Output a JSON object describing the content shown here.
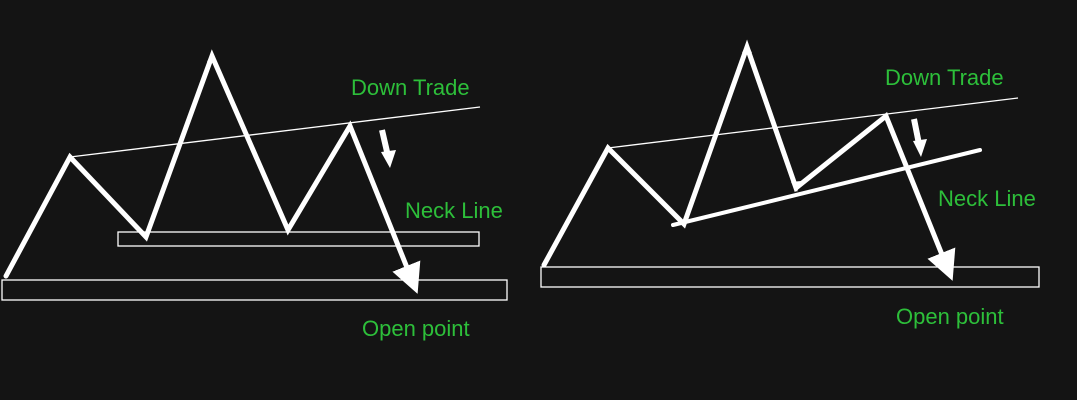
{
  "diagrams": [
    {
      "name": "head-and-shoulders-left",
      "labels": {
        "down_trade": "Down Trade",
        "neck_line": "Neck Line",
        "open_point": "Open point"
      }
    },
    {
      "name": "head-and-shoulders-right",
      "labels": {
        "down_trade": "Down Trade",
        "neck_line": "Neck Line",
        "open_point": "Open point"
      }
    }
  ],
  "colors": {
    "background": "#141414",
    "lines": "#ffffff",
    "labels": "#2dbf3a"
  }
}
